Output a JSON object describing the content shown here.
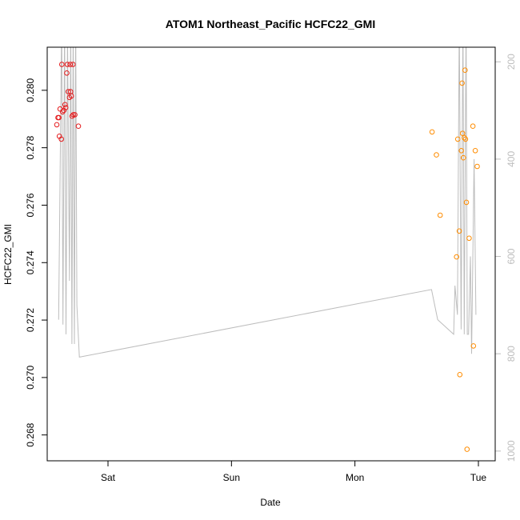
{
  "chart_data": {
    "type": "scatter",
    "title": "ATOM1 Northeast_Pacific HCFC22_GMI",
    "xlabel": "Date",
    "ylabel": "HCFC22_GMI",
    "x_unit": "days (Sat 00:00 = 1)",
    "xlim": [
      0.574,
      1.476
    ],
    "x_ticks": [
      {
        "label": "Sat",
        "value": 1.0
      },
      {
        "label": "Sun",
        "value": 2.0
      },
      {
        "label": "Mon",
        "value": 3.0
      },
      {
        "label": "Tue",
        "value": 4.0
      }
    ],
    "ylim": [
      0.2671,
      0.2815
    ],
    "y_ticks": [
      0.268,
      0.27,
      0.272,
      0.274,
      0.276,
      0.278,
      0.28
    ],
    "right_axis": {
      "ticks": [
        200,
        400,
        600,
        800,
        1000
      ],
      "lim": [
        1020,
        170
      ],
      "color": "#bdbdbd"
    },
    "grid": false,
    "legend": "none",
    "series": [
      {
        "color": "#e41a1c",
        "points": [
          {
            "x": 0.585,
            "y": 0.2788
          },
          {
            "x": 0.595,
            "y": 0.27905
          },
          {
            "x": 0.602,
            "y": 0.27905
          },
          {
            "x": 0.606,
            "y": 0.2784
          },
          {
            "x": 0.612,
            "y": 0.27935
          },
          {
            "x": 0.622,
            "y": 0.2783
          },
          {
            "x": 0.626,
            "y": 0.2809
          },
          {
            "x": 0.632,
            "y": 0.27925
          },
          {
            "x": 0.642,
            "y": 0.2793
          },
          {
            "x": 0.652,
            "y": 0.2795
          },
          {
            "x": 0.658,
            "y": 0.2794
          },
          {
            "x": 0.666,
            "y": 0.2806
          },
          {
            "x": 0.671,
            "y": 0.2809
          },
          {
            "x": 0.678,
            "y": 0.27995
          },
          {
            "x": 0.688,
            "y": 0.27975
          },
          {
            "x": 0.694,
            "y": 0.2809
          },
          {
            "x": 0.697,
            "y": 0.27995
          },
          {
            "x": 0.703,
            "y": 0.2798
          },
          {
            "x": 0.709,
            "y": 0.2791
          },
          {
            "x": 0.716,
            "y": 0.2809
          },
          {
            "x": 0.719,
            "y": 0.27915
          },
          {
            "x": 0.732,
            "y": 0.27915
          },
          {
            "x": 0.76,
            "y": 0.27875
          }
        ]
      },
      {
        "color": "#ff8c00",
        "points": [
          {
            "x": 3.625,
            "y": 0.27855
          },
          {
            "x": 3.66,
            "y": 0.27775
          },
          {
            "x": 3.69,
            "y": 0.27565
          },
          {
            "x": 3.823,
            "y": 0.2742
          },
          {
            "x": 3.833,
            "y": 0.2783
          },
          {
            "x": 3.845,
            "y": 0.2751
          },
          {
            "x": 3.85,
            "y": 0.2701
          },
          {
            "x": 3.862,
            "y": 0.2779
          },
          {
            "x": 3.868,
            "y": 0.28025
          },
          {
            "x": 3.872,
            "y": 0.2785
          },
          {
            "x": 3.878,
            "y": 0.27765
          },
          {
            "x": 3.885,
            "y": 0.27835
          },
          {
            "x": 3.892,
            "y": 0.2807
          },
          {
            "x": 3.896,
            "y": 0.2783
          },
          {
            "x": 3.903,
            "y": 0.2761
          },
          {
            "x": 3.908,
            "y": 0.2675
          },
          {
            "x": 3.925,
            "y": 0.27485
          },
          {
            "x": 3.955,
            "y": 0.27875
          },
          {
            "x": 3.96,
            "y": 0.2711
          },
          {
            "x": 3.975,
            "y": 0.2779
          },
          {
            "x": 3.99,
            "y": 0.27735
          }
        ]
      }
    ],
    "line_series": {
      "color": "#bdbdbd",
      "axis": "right",
      "points": [
        {
          "x": 0.6,
          "y": 730
        },
        {
          "x": 0.625,
          "y": 110
        },
        {
          "x": 0.635,
          "y": 740
        },
        {
          "x": 0.648,
          "y": 110
        },
        {
          "x": 0.66,
          "y": 760
        },
        {
          "x": 0.672,
          "y": 140
        },
        {
          "x": 0.688,
          "y": 650
        },
        {
          "x": 0.698,
          "y": 110
        },
        {
          "x": 0.708,
          "y": 780
        },
        {
          "x": 0.718,
          "y": 110
        },
        {
          "x": 0.728,
          "y": 780
        },
        {
          "x": 0.738,
          "y": 110
        },
        {
          "x": 0.748,
          "y": 700
        },
        {
          "x": 0.768,
          "y": 807
        },
        {
          "x": 3.62,
          "y": 668
        },
        {
          "x": 3.67,
          "y": 730
        },
        {
          "x": 3.8,
          "y": 760
        },
        {
          "x": 3.81,
          "y": 660
        },
        {
          "x": 3.83,
          "y": 720
        },
        {
          "x": 3.845,
          "y": 110
        },
        {
          "x": 3.86,
          "y": 750
        },
        {
          "x": 3.875,
          "y": 110
        },
        {
          "x": 3.885,
          "y": 760
        },
        {
          "x": 3.9,
          "y": 110
        },
        {
          "x": 3.91,
          "y": 760
        },
        {
          "x": 3.92,
          "y": 760
        },
        {
          "x": 3.935,
          "y": 600
        },
        {
          "x": 3.945,
          "y": 800
        },
        {
          "x": 3.965,
          "y": 400
        },
        {
          "x": 3.98,
          "y": 720
        }
      ]
    }
  }
}
